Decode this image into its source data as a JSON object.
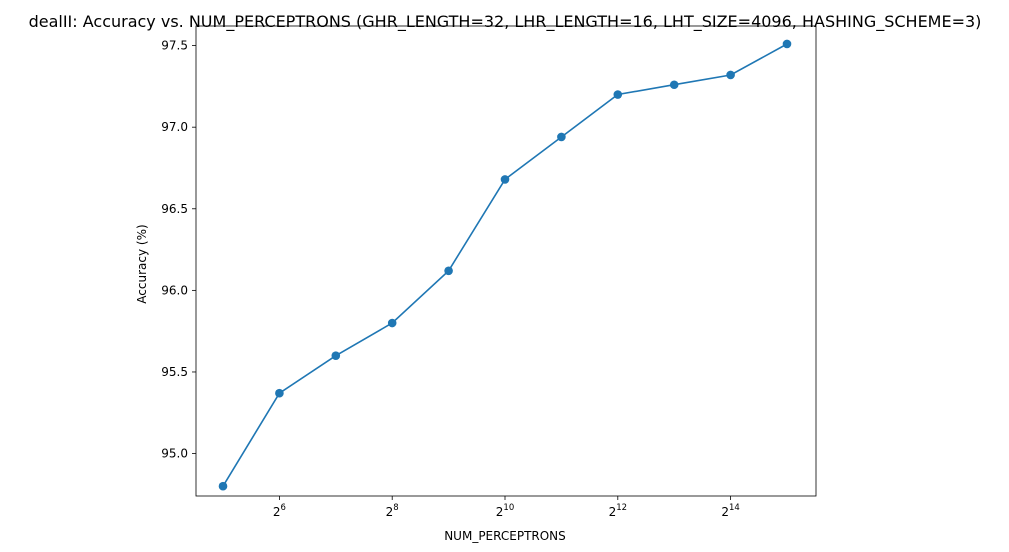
{
  "chart_data": {
    "type": "line",
    "title": "dealII: Accuracy vs. NUM_PERCEPTRONS (GHR_LENGTH=32, LHR_LENGTH=16, LHT_SIZE=4096, HASHING_SCHEME=3)",
    "xlabel": "NUM_PERCEPTRONS",
    "ylabel": "Accuracy (%)",
    "x_scale": "log2",
    "x": [
      32,
      64,
      128,
      256,
      512,
      1024,
      2048,
      4096,
      8192,
      16384,
      32768
    ],
    "x_tick_labels": [
      {
        "value": 64,
        "base": "2",
        "exp": "6"
      },
      {
        "value": 256,
        "base": "2",
        "exp": "8"
      },
      {
        "value": 1024,
        "base": "2",
        "exp": "10"
      },
      {
        "value": 4096,
        "base": "2",
        "exp": "12"
      },
      {
        "value": 16384,
        "base": "2",
        "exp": "14"
      }
    ],
    "y_ticks": [
      "95.0",
      "95.5",
      "96.0",
      "96.5",
      "97.0",
      "97.5"
    ],
    "ylim": [
      94.74,
      97.62
    ],
    "grid": false,
    "series": [
      {
        "values": [
          94.8,
          95.37,
          95.6,
          95.8,
          96.12,
          96.68,
          96.94,
          97.2,
          97.26,
          97.32,
          97.51
        ],
        "color": "#1f77b4",
        "marker": "circle"
      }
    ]
  }
}
